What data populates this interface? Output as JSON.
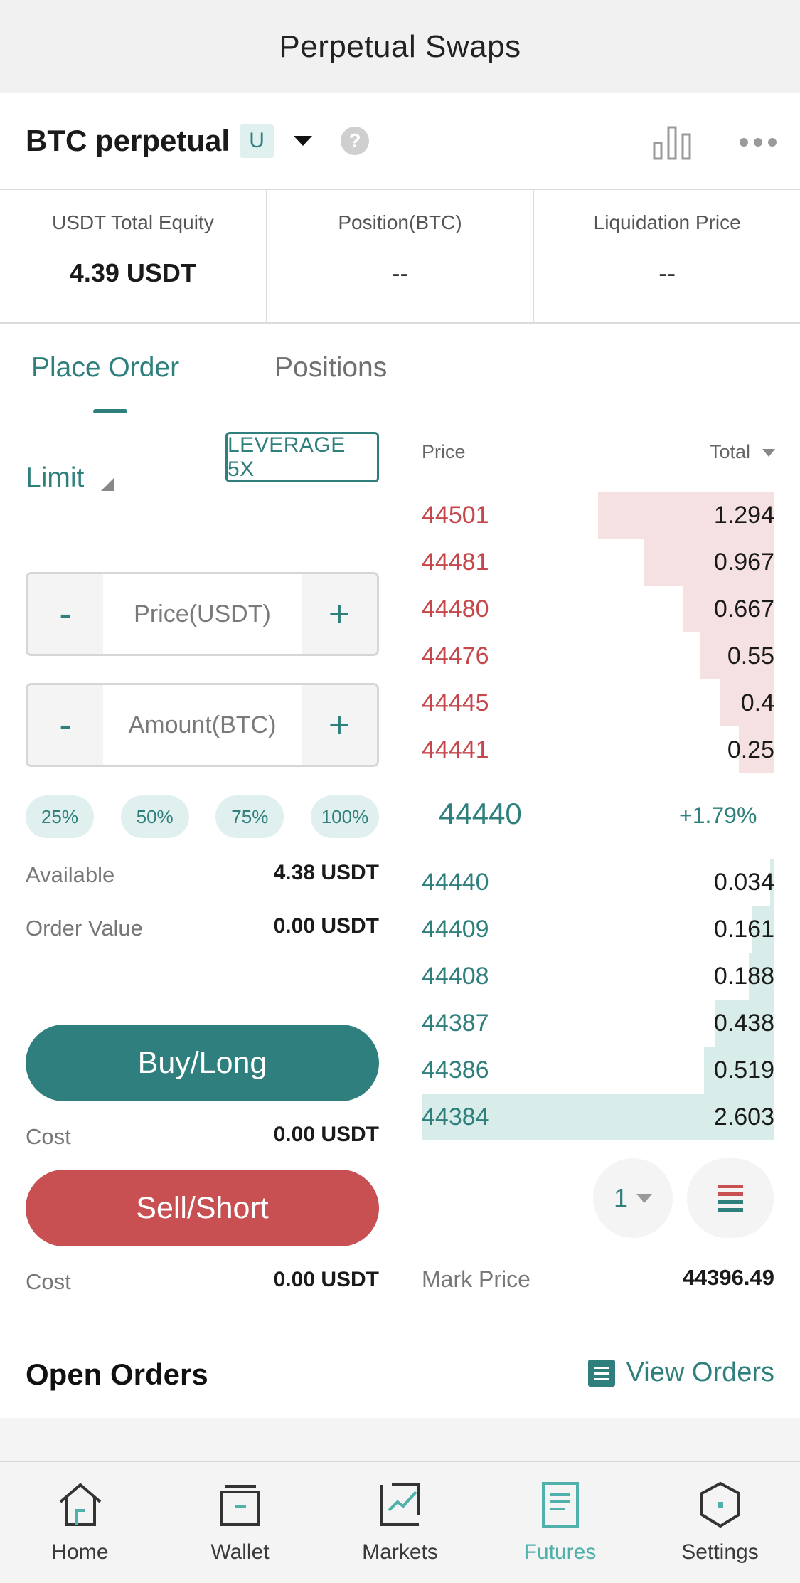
{
  "header": {
    "title": "Perpetual Swaps"
  },
  "instrument": {
    "name": "BTC perpetual",
    "badge": "U",
    "help": "?"
  },
  "stats": [
    {
      "label": "USDT Total Equity",
      "value": "4.39 USDT"
    },
    {
      "label": "Position(BTC)",
      "value": "--"
    },
    {
      "label": "Liquidation Price",
      "value": "--"
    }
  ],
  "tabs": {
    "place_order": "Place Order",
    "positions": "Positions"
  },
  "order_form": {
    "order_type": "Limit",
    "leverage": "LEVERAGE 5X",
    "price_placeholder": "Price(USDT)",
    "amount_placeholder": "Amount(BTC)",
    "minus": "-",
    "plus": "+",
    "percents": [
      "25%",
      "50%",
      "75%",
      "100%"
    ],
    "available_label": "Available",
    "available_value": "4.38 USDT",
    "order_value_label": "Order Value",
    "order_value": "0.00 USDT",
    "buy_label": "Buy/Long",
    "buy_cost_label": "Cost",
    "buy_cost_value": "0.00 USDT",
    "sell_label": "Sell/Short",
    "sell_cost_label": "Cost",
    "sell_cost_value": "0.00 USDT"
  },
  "orderbook": {
    "price_header": "Price",
    "total_header": "Total",
    "asks": [
      {
        "price": "44501",
        "total": "1.294",
        "depth": 0.5
      },
      {
        "price": "44481",
        "total": "0.967",
        "depth": 0.37
      },
      {
        "price": "44480",
        "total": "0.667",
        "depth": 0.26
      },
      {
        "price": "44476",
        "total": "0.55",
        "depth": 0.21
      },
      {
        "price": "44445",
        "total": "0.4",
        "depth": 0.155
      },
      {
        "price": "44441",
        "total": "0.25",
        "depth": 0.1
      }
    ],
    "mid_price": "44440",
    "mid_change": "+1.79%",
    "bids": [
      {
        "price": "44440",
        "total": "0.034",
        "depth": 0.013
      },
      {
        "price": "44409",
        "total": "0.161",
        "depth": 0.062
      },
      {
        "price": "44408",
        "total": "0.188",
        "depth": 0.072
      },
      {
        "price": "44387",
        "total": "0.438",
        "depth": 0.168
      },
      {
        "price": "44386",
        "total": "0.519",
        "depth": 0.2
      },
      {
        "price": "44384",
        "total": "2.603",
        "depth": 1.0
      }
    ],
    "depth_value": "1",
    "mark_price_label": "Mark Price",
    "mark_price": "44396.49"
  },
  "open_orders": {
    "title": "Open Orders",
    "view_label": "View Orders"
  },
  "tabbar": [
    {
      "label": "Home",
      "icon": "home-icon",
      "active": false
    },
    {
      "label": "Wallet",
      "icon": "wallet-icon",
      "active": false
    },
    {
      "label": "Markets",
      "icon": "markets-icon",
      "active": false
    },
    {
      "label": "Futures",
      "icon": "futures-icon",
      "active": true
    },
    {
      "label": "Settings",
      "icon": "settings-icon",
      "active": false
    }
  ],
  "colors": {
    "accent": "#2f7f7d",
    "sell": "#c84f52",
    "ask_bar": "#f5e1e1",
    "bid_bar": "#d8ecea",
    "active_tab": "#4fb1aa"
  }
}
